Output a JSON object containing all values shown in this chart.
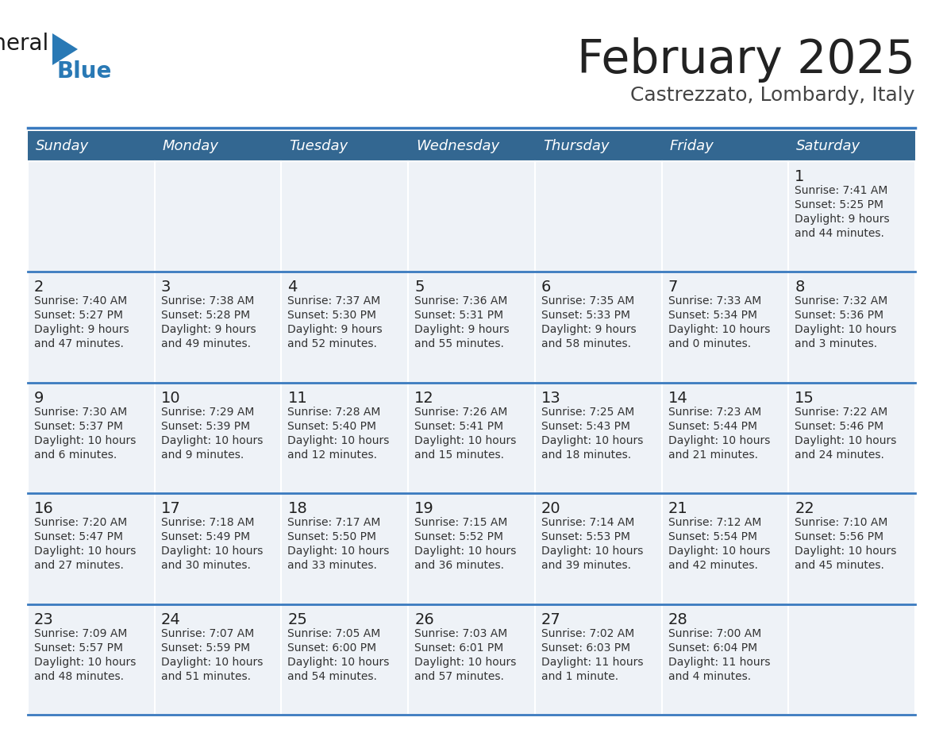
{
  "title": "February 2025",
  "subtitle": "Castrezzato, Lombardy, Italy",
  "header_color": "#336791",
  "header_text_color": "#ffffff",
  "cell_bg_color": "#eef2f7",
  "border_color": "#336791",
  "separator_color": "#3a7abf",
  "days_of_week": [
    "Sunday",
    "Monday",
    "Tuesday",
    "Wednesday",
    "Thursday",
    "Friday",
    "Saturday"
  ],
  "title_color": "#222222",
  "subtitle_color": "#444444",
  "day_num_color": "#222222",
  "info_color": "#333333",
  "logo_general_color": "#1a1a1a",
  "logo_blue_color": "#2979b5",
  "logo_triangle_color": "#2979b5",
  "weeks": [
    [
      null,
      null,
      null,
      null,
      null,
      null,
      {
        "day": 1,
        "sunrise": "7:41 AM",
        "sunset": "5:25 PM",
        "daylight": "9 hours\nand 44 minutes."
      }
    ],
    [
      {
        "day": 2,
        "sunrise": "7:40 AM",
        "sunset": "5:27 PM",
        "daylight": "9 hours\nand 47 minutes."
      },
      {
        "day": 3,
        "sunrise": "7:38 AM",
        "sunset": "5:28 PM",
        "daylight": "9 hours\nand 49 minutes."
      },
      {
        "day": 4,
        "sunrise": "7:37 AM",
        "sunset": "5:30 PM",
        "daylight": "9 hours\nand 52 minutes."
      },
      {
        "day": 5,
        "sunrise": "7:36 AM",
        "sunset": "5:31 PM",
        "daylight": "9 hours\nand 55 minutes."
      },
      {
        "day": 6,
        "sunrise": "7:35 AM",
        "sunset": "5:33 PM",
        "daylight": "9 hours\nand 58 minutes."
      },
      {
        "day": 7,
        "sunrise": "7:33 AM",
        "sunset": "5:34 PM",
        "daylight": "10 hours\nand 0 minutes."
      },
      {
        "day": 8,
        "sunrise": "7:32 AM",
        "sunset": "5:36 PM",
        "daylight": "10 hours\nand 3 minutes."
      }
    ],
    [
      {
        "day": 9,
        "sunrise": "7:30 AM",
        "sunset": "5:37 PM",
        "daylight": "10 hours\nand 6 minutes."
      },
      {
        "day": 10,
        "sunrise": "7:29 AM",
        "sunset": "5:39 PM",
        "daylight": "10 hours\nand 9 minutes."
      },
      {
        "day": 11,
        "sunrise": "7:28 AM",
        "sunset": "5:40 PM",
        "daylight": "10 hours\nand 12 minutes."
      },
      {
        "day": 12,
        "sunrise": "7:26 AM",
        "sunset": "5:41 PM",
        "daylight": "10 hours\nand 15 minutes."
      },
      {
        "day": 13,
        "sunrise": "7:25 AM",
        "sunset": "5:43 PM",
        "daylight": "10 hours\nand 18 minutes."
      },
      {
        "day": 14,
        "sunrise": "7:23 AM",
        "sunset": "5:44 PM",
        "daylight": "10 hours\nand 21 minutes."
      },
      {
        "day": 15,
        "sunrise": "7:22 AM",
        "sunset": "5:46 PM",
        "daylight": "10 hours\nand 24 minutes."
      }
    ],
    [
      {
        "day": 16,
        "sunrise": "7:20 AM",
        "sunset": "5:47 PM",
        "daylight": "10 hours\nand 27 minutes."
      },
      {
        "day": 17,
        "sunrise": "7:18 AM",
        "sunset": "5:49 PM",
        "daylight": "10 hours\nand 30 minutes."
      },
      {
        "day": 18,
        "sunrise": "7:17 AM",
        "sunset": "5:50 PM",
        "daylight": "10 hours\nand 33 minutes."
      },
      {
        "day": 19,
        "sunrise": "7:15 AM",
        "sunset": "5:52 PM",
        "daylight": "10 hours\nand 36 minutes."
      },
      {
        "day": 20,
        "sunrise": "7:14 AM",
        "sunset": "5:53 PM",
        "daylight": "10 hours\nand 39 minutes."
      },
      {
        "day": 21,
        "sunrise": "7:12 AM",
        "sunset": "5:54 PM",
        "daylight": "10 hours\nand 42 minutes."
      },
      {
        "day": 22,
        "sunrise": "7:10 AM",
        "sunset": "5:56 PM",
        "daylight": "10 hours\nand 45 minutes."
      }
    ],
    [
      {
        "day": 23,
        "sunrise": "7:09 AM",
        "sunset": "5:57 PM",
        "daylight": "10 hours\nand 48 minutes."
      },
      {
        "day": 24,
        "sunrise": "7:07 AM",
        "sunset": "5:59 PM",
        "daylight": "10 hours\nand 51 minutes."
      },
      {
        "day": 25,
        "sunrise": "7:05 AM",
        "sunset": "6:00 PM",
        "daylight": "10 hours\nand 54 minutes."
      },
      {
        "day": 26,
        "sunrise": "7:03 AM",
        "sunset": "6:01 PM",
        "daylight": "10 hours\nand 57 minutes."
      },
      {
        "day": 27,
        "sunrise": "7:02 AM",
        "sunset": "6:03 PM",
        "daylight": "11 hours\nand 1 minute."
      },
      {
        "day": 28,
        "sunrise": "7:00 AM",
        "sunset": "6:04 PM",
        "daylight": "11 hours\nand 4 minutes."
      },
      null
    ]
  ]
}
